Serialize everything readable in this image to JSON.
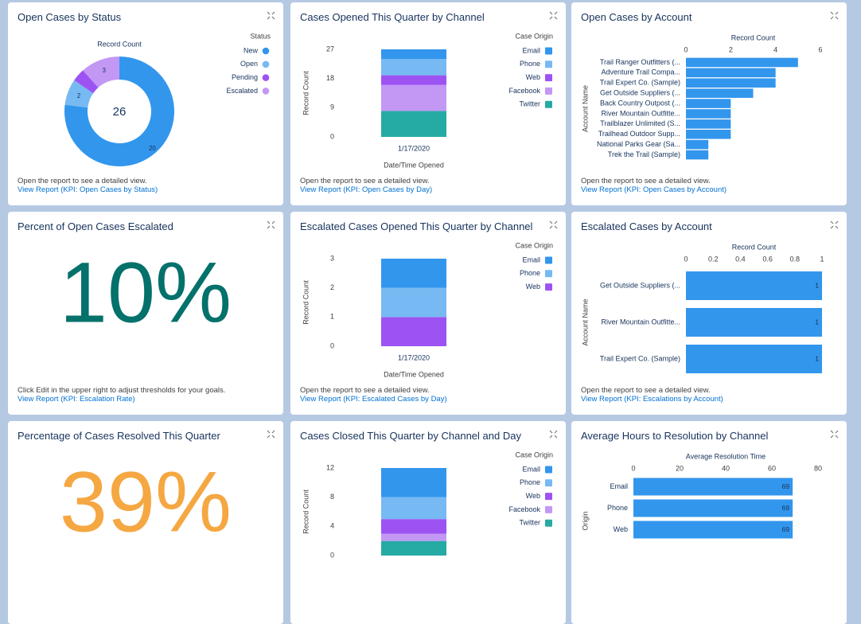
{
  "chart_data": [
    {
      "type": "donut",
      "title": "Open Cases by Status",
      "subtitle": "Record Count",
      "legend_title": "Status",
      "categories": [
        "New",
        "Open",
        "Pending",
        "Escalated"
      ],
      "values": [
        20,
        2,
        1,
        3
      ],
      "value_labels": [
        "20",
        "2",
        null,
        "3"
      ],
      "colors": [
        "#3296ed",
        "#77b9f2",
        "#9d53f2",
        "#c398f5"
      ],
      "total": 26,
      "note": "Open the report to see a detailed view.",
      "link": "View Report (KPI: Open Cases by Status)"
    },
    {
      "type": "stacked_bar",
      "title": "Cases Opened This Quarter by Channel",
      "categories": [
        "1/17/2020"
      ],
      "x_label": "Date/Time Opened",
      "y_label": "Record Count",
      "legend_title": "Case Origin",
      "ylim": [
        0,
        27
      ],
      "yticks": [
        0,
        9,
        18,
        27
      ],
      "series": [
        {
          "name": "Email",
          "color": "#3296ed",
          "values": [
            3
          ]
        },
        {
          "name": "Phone",
          "color": "#77b9f2",
          "values": [
            5
          ]
        },
        {
          "name": "Web",
          "color": "#9d53f2",
          "values": [
            3
          ]
        },
        {
          "name": "Facebook",
          "color": "#c398f5",
          "values": [
            8
          ]
        },
        {
          "name": "Twitter",
          "color": "#26aba4",
          "values": [
            8
          ]
        }
      ],
      "note": "Open the report to see a detailed view.",
      "link": "View Report (KPI: Open Cases by Day)"
    },
    {
      "type": "hbar",
      "title": "Open Cases by Account",
      "x_label": "Record Count",
      "y_label": "Account Name",
      "categories": [
        "Trail Ranger Outfitters (...",
        "Adventure Trail Compa...",
        "Trail Expert Co. (Sample)",
        "Get Outside Suppliers (...",
        "Back Country Outpost (...",
        "River Mountain Outfitte...",
        "Trailblazer Unlimited (S...",
        "Trailhead Outdoor Supp...",
        "National Parks Gear (Sa...",
        "Trek the Trail (Sample)"
      ],
      "values": [
        5,
        4,
        4,
        3,
        2,
        2,
        2,
        2,
        1,
        1
      ],
      "color": "#3296ed",
      "xlim": [
        0,
        6
      ],
      "xticks": [
        0,
        2,
        4,
        6
      ],
      "show_values": false,
      "note": "Open the report to see a detailed view.",
      "link": "View Report (KPI: Open Cases by Account)"
    },
    {
      "type": "metric",
      "title": "Percent of Open Cases Escalated",
      "value": 10,
      "value_label": "10%",
      "color": "#04716b",
      "note": "Click Edit in the upper right to adjust thresholds for your goals.",
      "link": "View Report (KPI: Escalation Rate)"
    },
    {
      "type": "stacked_bar",
      "title": "Escalated Cases Opened This Quarter by Channel",
      "categories": [
        "1/17/2020"
      ],
      "x_label": "Date/Time Opened",
      "y_label": "Record Count",
      "legend_title": "Case Origin",
      "ylim": [
        0,
        3
      ],
      "yticks": [
        0,
        1,
        2,
        3
      ],
      "series": [
        {
          "name": "Email",
          "color": "#3296ed",
          "values": [
            1
          ]
        },
        {
          "name": "Phone",
          "color": "#77b9f2",
          "values": [
            1
          ]
        },
        {
          "name": "Web",
          "color": "#9d53f2",
          "values": [
            1
          ]
        }
      ],
      "note": "Open the report to see a detailed view.",
      "link": "View Report (KPI: Escalated Cases by Day)"
    },
    {
      "type": "hbar",
      "title": "Escalated Cases by Account",
      "x_label": "Record Count",
      "y_label": "Account Name",
      "categories": [
        "Get Outside Suppliers (...",
        "River Mountain Outfitte...",
        "Trail Expert Co. (Sample)"
      ],
      "values": [
        1,
        1,
        1
      ],
      "color": "#3296ed",
      "xlim": [
        0,
        1
      ],
      "xticks": [
        0,
        0.2,
        0.4,
        0.6,
        0.8,
        1
      ],
      "show_values": true,
      "note": "Open the report to see a detailed view.",
      "link": "View Report (KPI: Escalations by Account)"
    },
    {
      "type": "metric",
      "title": "Percentage of Cases Resolved This Quarter",
      "value": 39,
      "value_label": "39%",
      "color": "#f5a742"
    },
    {
      "type": "stacked_bar",
      "title": "Cases Closed This Quarter by Channel and Day",
      "y_label": "Record Count",
      "legend_title": "Case Origin",
      "ylim": [
        0,
        12
      ],
      "yticks": [
        0,
        4,
        8,
        12
      ],
      "series": [
        {
          "name": "Email",
          "color": "#3296ed",
          "values": [
            4
          ]
        },
        {
          "name": "Phone",
          "color": "#77b9f2",
          "values": [
            3
          ]
        },
        {
          "name": "Web",
          "color": "#9d53f2",
          "values": [
            2
          ]
        },
        {
          "name": "Facebook",
          "color": "#c398f5",
          "values": [
            1
          ]
        },
        {
          "name": "Twitter",
          "color": "#26aba4",
          "values": [
            2
          ]
        }
      ]
    },
    {
      "type": "hbar",
      "title": "Average Hours to Resolution by Channel",
      "x_label": "Average Resolution Time",
      "y_label": "Origin",
      "categories": [
        "Email",
        "Phone",
        "Web"
      ],
      "values": [
        69,
        69,
        69
      ],
      "color": "#3296ed",
      "xlim": [
        0,
        80
      ],
      "xticks": [
        0,
        20,
        40,
        60,
        80
      ],
      "show_values": true
    }
  ]
}
